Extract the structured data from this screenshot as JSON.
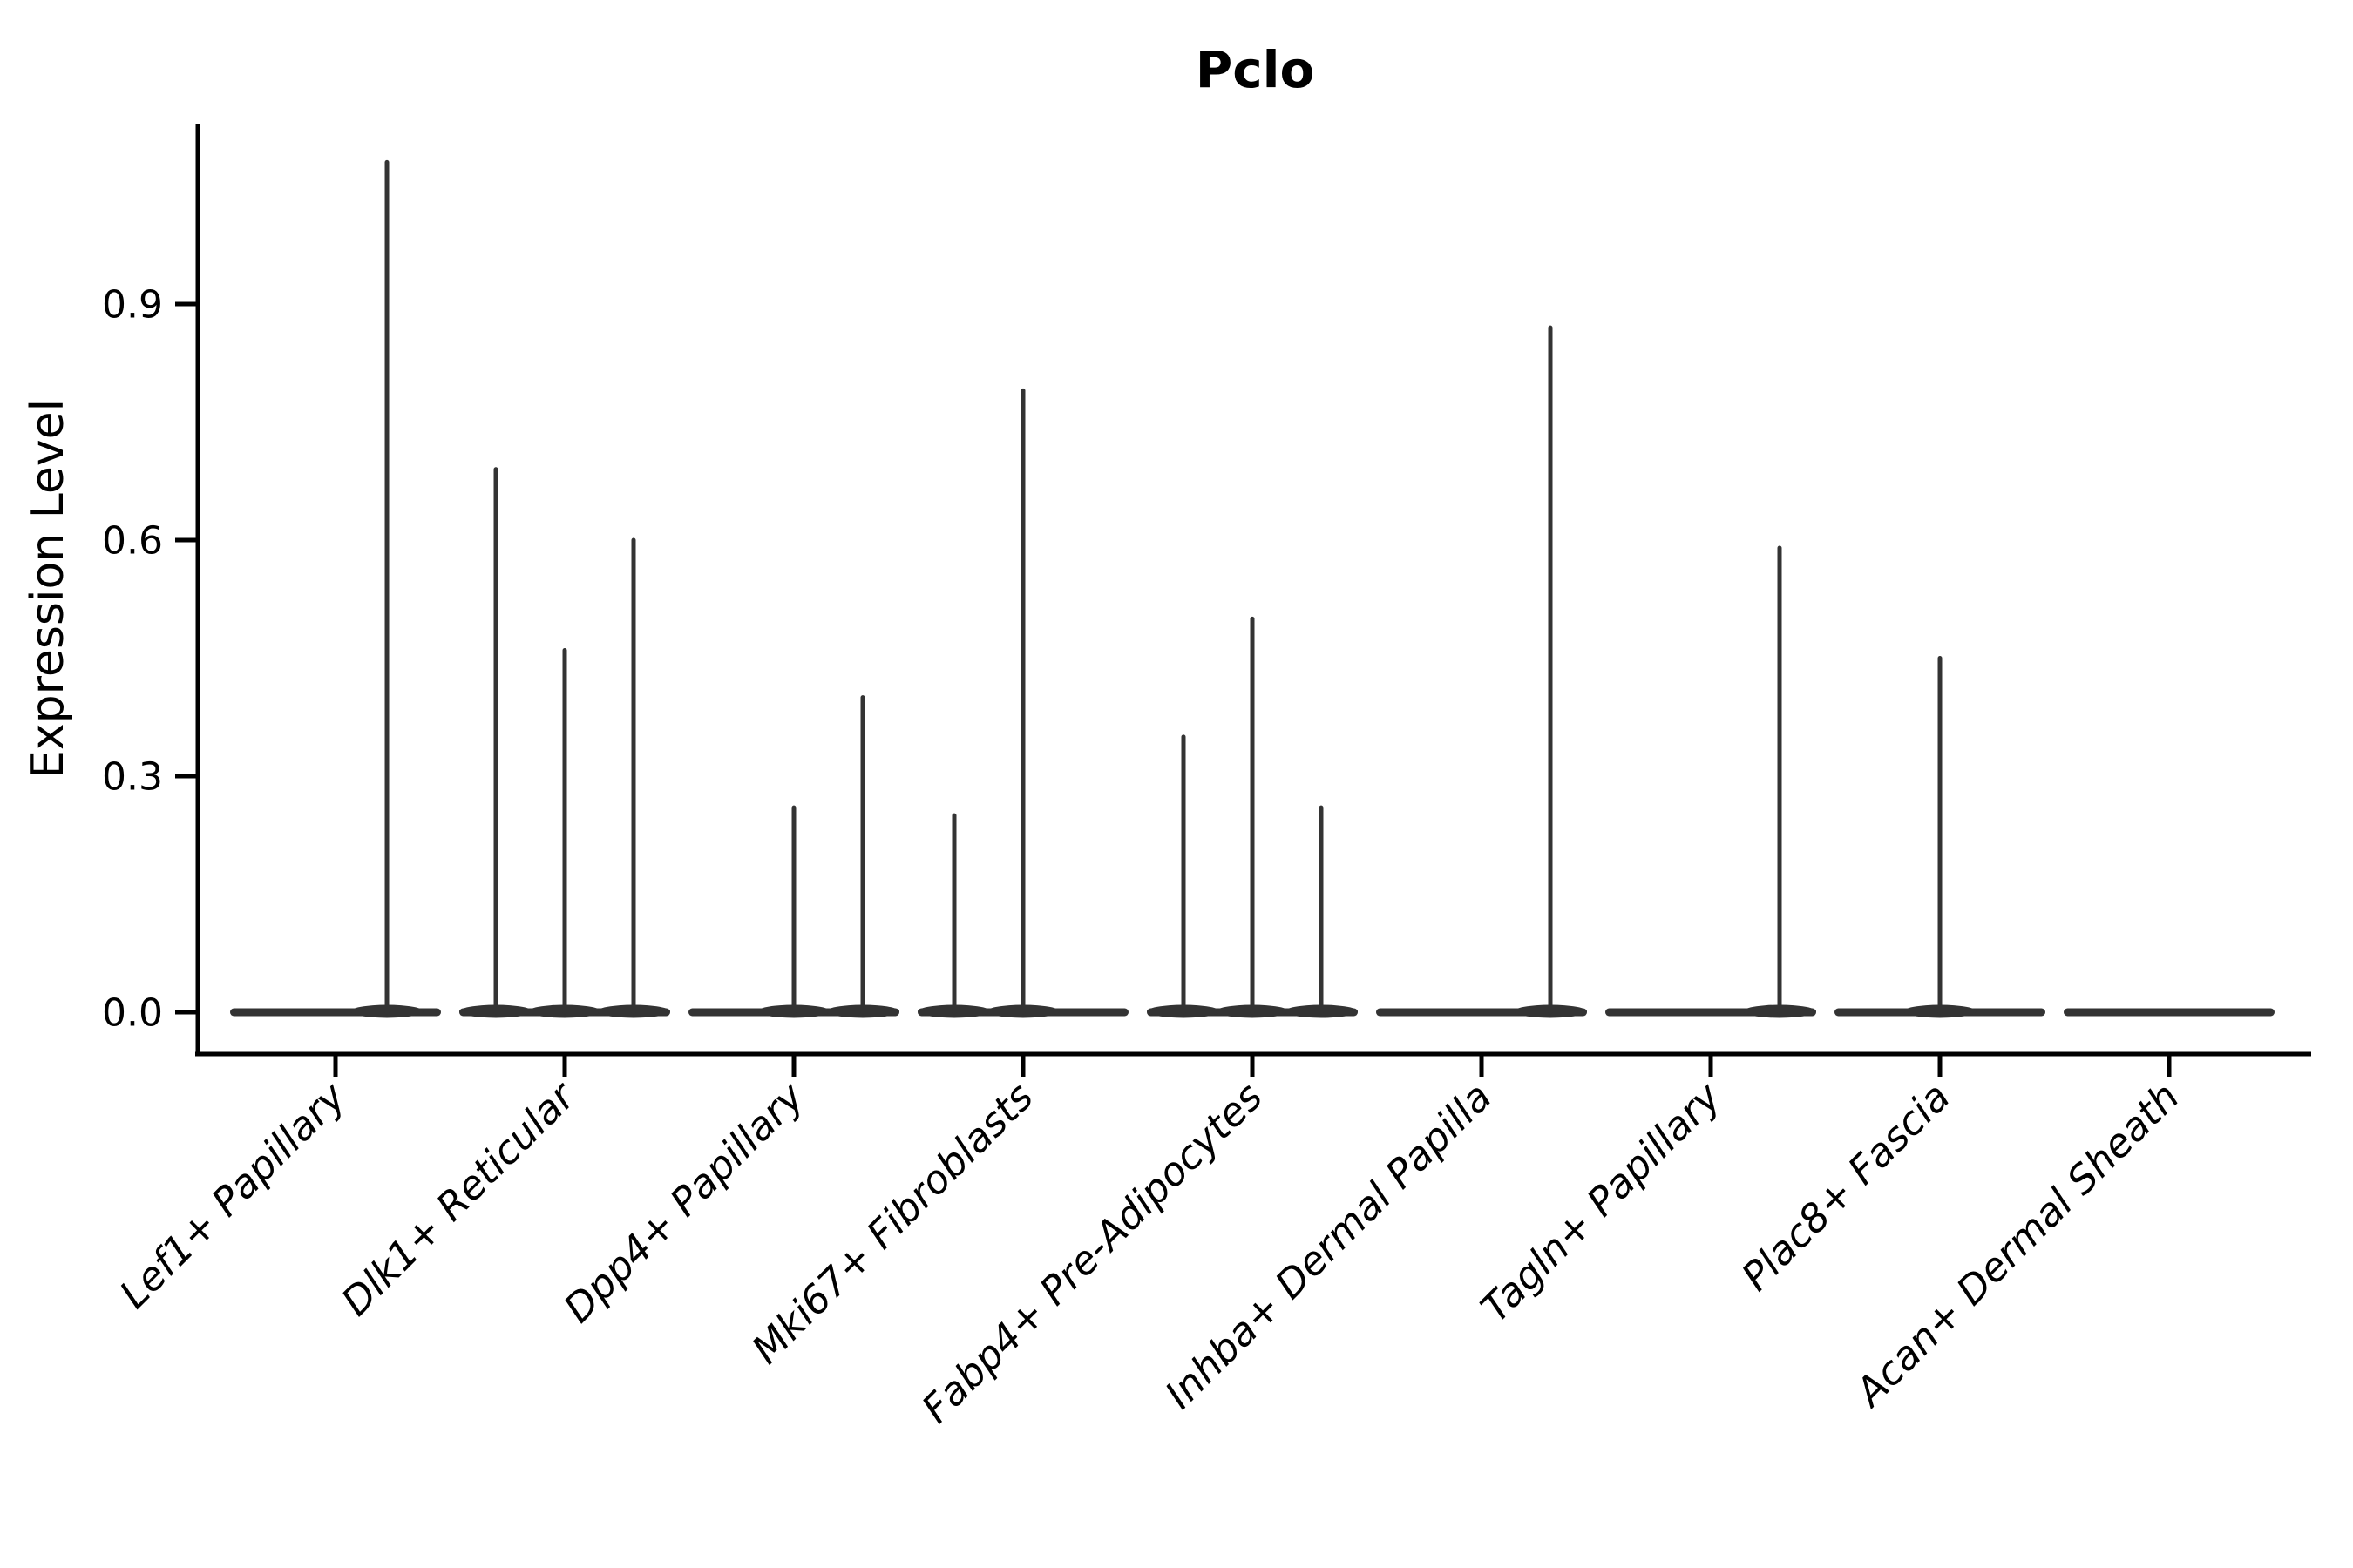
{
  "chart_data": {
    "type": "violin",
    "title": "Pclo",
    "xlabel": "",
    "ylabel": "Expression Level",
    "legend": null,
    "grid": false,
    "ytick_labels": [
      "0.0",
      "0.3",
      "0.6",
      "0.9"
    ],
    "ytick_values": [
      0.0,
      0.3,
      0.6,
      0.9
    ],
    "ylim": [
      -0.053,
      1.13
    ],
    "categories": [
      "Lef1+ Papillary",
      "Dlk1+ Reticular",
      "Dpp4+ Papillary",
      "Mki67+ Fibroblasts",
      "Fabp4+ Pre-Adipocytes",
      "Inhba+ Dermal Papilla",
      "Tagln+ Papillary",
      "Plac8+ Fascia",
      "Acan+ Dermal Sheath"
    ],
    "violins": [
      {
        "category": "Lef1+ Papillary",
        "baseline_at_zero": true,
        "spikes": [
          {
            "offset": 59,
            "max": 1.08
          }
        ]
      },
      {
        "category": "Dlk1+ Reticular",
        "baseline_at_zero": true,
        "spikes": [
          {
            "offset": -79,
            "max": 0.69
          },
          {
            "offset": 0,
            "max": 0.46
          },
          {
            "offset": 79,
            "max": 0.6
          }
        ]
      },
      {
        "category": "Dpp4+ Papillary",
        "baseline_at_zero": true,
        "spikes": [
          {
            "offset": 0,
            "max": 0.26
          },
          {
            "offset": 79,
            "max": 0.4
          }
        ]
      },
      {
        "category": "Mki67+ Fibroblasts",
        "baseline_at_zero": true,
        "spikes": [
          {
            "offset": -79,
            "max": 0.25
          },
          {
            "offset": 0,
            "max": 0.79
          }
        ]
      },
      {
        "category": "Fabp4+ Pre-Adipocytes",
        "baseline_at_zero": true,
        "spikes": [
          {
            "offset": -79,
            "max": 0.35
          },
          {
            "offset": 0,
            "max": 0.5
          },
          {
            "offset": 79,
            "max": 0.26
          }
        ]
      },
      {
        "category": "Inhba+ Dermal Papilla",
        "baseline_at_zero": true,
        "spikes": [
          {
            "offset": 79,
            "max": 0.87
          }
        ]
      },
      {
        "category": "Tagln+ Papillary",
        "baseline_at_zero": true,
        "spikes": [
          {
            "offset": 79,
            "max": 0.59
          }
        ]
      },
      {
        "category": "Plac8+ Fascia",
        "baseline_at_zero": true,
        "spikes": [
          {
            "offset": 0,
            "max": 0.45
          }
        ]
      },
      {
        "category": "Acan+ Dermal Sheath",
        "baseline_at_zero": true,
        "spikes": []
      }
    ],
    "colors": {
      "violin": "#333333",
      "axis": "#000000",
      "text": "#000000",
      "background": "#ffffff"
    }
  }
}
